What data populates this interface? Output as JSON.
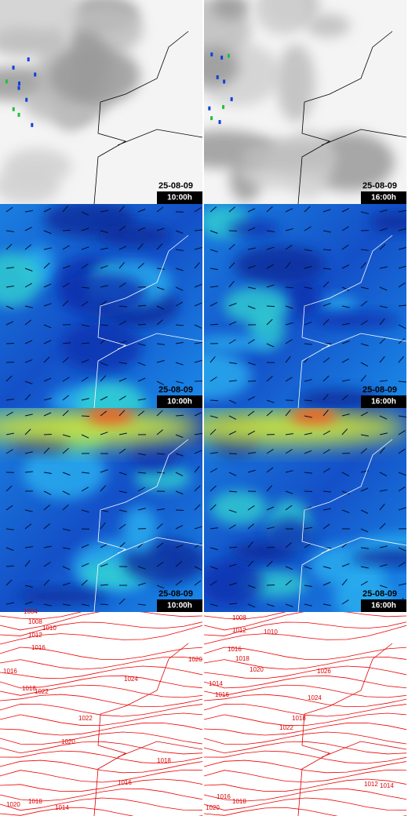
{
  "panels": [
    {
      "date": "25-08-09",
      "time": "10:00h"
    },
    {
      "date": "25-08-09",
      "time": "16:00h"
    },
    {
      "date": "25-08-09",
      "time": "10:00h"
    },
    {
      "date": "25-08-09",
      "time": "16:00h"
    },
    {
      "date": "25-08-09",
      "time": "10:00h"
    },
    {
      "date": "25-08-09",
      "time": "16:00h"
    }
  ],
  "pressure_maps": [
    {
      "isobar_labels": [
        "1004",
        "1008",
        "1010",
        "1012",
        "1016",
        "1016",
        "1018",
        "1022",
        "1024",
        "1020",
        "1022",
        "1020",
        "1018",
        "1016",
        "1020",
        "1018",
        "1014"
      ]
    },
    {
      "isobar_labels": [
        "1008",
        "1012",
        "1010",
        "1016",
        "1018",
        "1020",
        "1014",
        "1016",
        "1026",
        "1024",
        "1022",
        "1018",
        "1016",
        "1018",
        "1012",
        "1014",
        "1020"
      ]
    }
  ]
}
